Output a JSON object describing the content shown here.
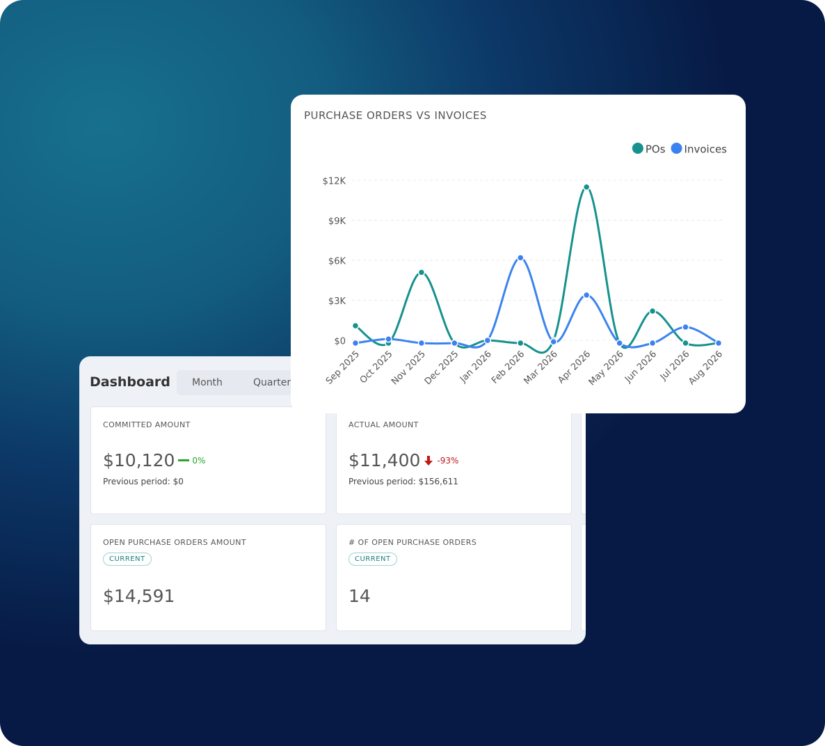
{
  "dashboard": {
    "title": "Dashboard",
    "tabs": [
      "Month",
      "Quarter"
    ],
    "cards": [
      {
        "label": "COMMITTED AMOUNT",
        "value": "$10,120",
        "change": "0%",
        "previous": "Previous period: $0"
      },
      {
        "label": "ACTUAL AMOUNT",
        "value": "$11,400",
        "change": "-93%",
        "previous": "Previous period: $156,611"
      },
      {
        "label": "OPEN PURCHASE ORDERS AMOUNT",
        "badge": "CURRENT",
        "value": "$14,591"
      },
      {
        "label": "# OF OPEN PURCHASE ORDERS",
        "badge": "CURRENT",
        "value": "14"
      }
    ]
  },
  "chart_data": {
    "type": "line",
    "title": "PURCHASE ORDERS VS INVOICES",
    "categories": [
      "Sep 2025",
      "Oct 2025",
      "Nov 2025",
      "Dec 2025",
      "Jan 2026",
      "Feb 2026",
      "Mar 2026",
      "Apr 2026",
      "May 2026",
      "Jun 2026",
      "Jul 2026",
      "Aug 2026"
    ],
    "series": [
      {
        "name": "POs",
        "color": "#15918e",
        "values": [
          1300,
          0,
          5300,
          0,
          200,
          0,
          200,
          11700,
          0,
          2400,
          0,
          0
        ]
      },
      {
        "name": "Invoices",
        "color": "#3b82f0",
        "values": [
          0,
          300,
          0,
          0,
          200,
          6400,
          100,
          3600,
          0,
          0,
          1200,
          0
        ]
      }
    ],
    "ylim": [
      0,
      12000
    ],
    "yticks": [
      {
        "value": 0,
        "label": "$0"
      },
      {
        "value": 3000,
        "label": "$3K"
      },
      {
        "value": 6000,
        "label": "$6K"
      },
      {
        "value": 9000,
        "label": "$9K"
      },
      {
        "value": 12000,
        "label": "$12K"
      }
    ],
    "grid": true,
    "legend": "top-right"
  }
}
